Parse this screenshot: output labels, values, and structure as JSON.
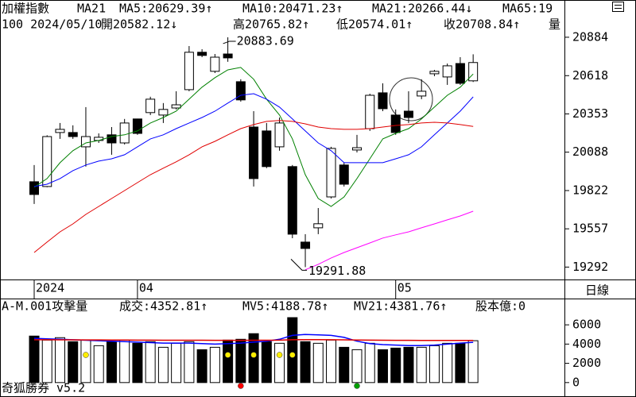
{
  "chart_data": [
    {
      "type": "candlestick",
      "title": "加權指數",
      "subtitle": "MA21",
      "info": [
        "100 2024/05/10",
        "開20582.12↓",
        "高20765.82↑",
        "低20574.01↑",
        "收20708.84↑",
        "量"
      ],
      "categories": [
        "2024",
        null,
        null,
        null,
        null,
        null,
        null,
        null,
        "04",
        null,
        null,
        null,
        null,
        null,
        null,
        null,
        null,
        null,
        null,
        null,
        null,
        null,
        null,
        null,
        null,
        null,
        null,
        null,
        "05",
        null,
        null,
        null,
        null,
        null,
        null
      ],
      "open": [
        19883,
        19850,
        20224,
        20224,
        20125,
        20169,
        20208,
        20152,
        20318,
        20362,
        20345,
        20394,
        20521,
        20780,
        20648,
        20768,
        20576,
        20262,
        20235,
        20125,
        19988,
        19465,
        19564,
        19778,
        19999,
        20103,
        20251,
        20499,
        20345,
        20372,
        20477,
        20631,
        20609,
        20702,
        20582.12
      ],
      "high": [
        19999,
        20205,
        20290,
        20274,
        20400,
        20218,
        20262,
        20318,
        20320,
        20472,
        20428,
        20510,
        20823,
        20801,
        20768,
        20883.69,
        20593,
        20372,
        20290,
        20328,
        19999,
        19520,
        19701,
        20125,
        20015,
        20208,
        20493,
        20565,
        20384,
        20510,
        20593,
        20658,
        20702,
        20746,
        20765.82
      ],
      "low": [
        19729,
        19845,
        20180,
        20180,
        19988,
        20152,
        20070,
        20141,
        20208,
        20345,
        20290,
        20384,
        20510,
        20746,
        20636,
        20714,
        20438,
        19850,
        19977,
        20098,
        19492,
        19291.88,
        19520,
        19767,
        19850,
        20086,
        20235,
        20372,
        20208,
        20290,
        20455,
        20614,
        20554,
        20554,
        20574.01
      ],
      "close": [
        19795,
        20196,
        20246,
        20196,
        20196,
        20191,
        20152,
        20290,
        20218,
        20455,
        20384,
        20416,
        20780,
        20758,
        20746,
        20741,
        20450,
        19905,
        19988,
        20290,
        19520,
        19421,
        19592,
        20114,
        19866,
        20119,
        20482,
        20389,
        20224,
        20328,
        20510,
        20648,
        20686,
        20565,
        20708.84
      ],
      "series": [
        {
          "name": "MA5:20629.39↑",
          "color": "#008000",
          "values": [
            19845,
            19905,
            20015,
            20098,
            20152,
            20169,
            20196,
            20208,
            20235,
            20290,
            20328,
            20372,
            20455,
            20538,
            20604,
            20658,
            20675,
            20593,
            20455,
            20345,
            20180,
            19932,
            19767,
            19712,
            19778,
            19905,
            20042,
            20180,
            20218,
            20251,
            20318,
            20400,
            20482,
            20538,
            20629.39
          ]
        },
        {
          "name": "MA10:20471.23↑",
          "color": "#0000ff",
          "values": [
            19850,
            19866,
            19905,
            19960,
            19999,
            20026,
            20042,
            20070,
            20125,
            20180,
            20208,
            20251,
            20290,
            20328,
            20372,
            20428,
            20482,
            20493,
            20455,
            20400,
            20318,
            20235,
            20152,
            20098,
            20015,
            20015,
            20015,
            20015,
            20042,
            20070,
            20125,
            20208,
            20290,
            20372,
            20471.23
          ]
        },
        {
          "name": "MA21:20266.44↓",
          "color": "#e00000",
          "values": [
            19393,
            19465,
            19536,
            19591,
            19657,
            19712,
            19767,
            19822,
            19877,
            19932,
            19977,
            20021,
            20070,
            20125,
            20163,
            20208,
            20251,
            20279,
            20301,
            20307,
            20301,
            20284,
            20262,
            20251,
            20246,
            20246,
            20251,
            20262,
            20273,
            20279,
            20290,
            20295,
            20290,
            20279,
            20266.44
          ]
        },
        {
          "name": "MA65:19",
          "color": "#ff00ff",
          "values": [
            null,
            null,
            null,
            null,
            null,
            null,
            null,
            null,
            null,
            null,
            null,
            null,
            null,
            null,
            null,
            null,
            null,
            null,
            null,
            null,
            null,
            19273,
            19311,
            19355,
            19393,
            19426,
            19459,
            19493,
            19515,
            19536,
            19564,
            19591,
            19619,
            19646,
            19679
          ]
        }
      ],
      "extreme_labels": true,
      "ylim": [
        19206,
        21032
      ],
      "yticks": [
        20884,
        20618,
        20353,
        20088,
        19822,
        19557,
        19292
      ]
    },
    {
      "type": "bar",
      "title": "A-M.001攻擊量",
      "legend_label": "成交:4352.81↑",
      "legend_color": "#008000",
      "extra_label": "股本億:0",
      "extra_color": "#ff00ff",
      "values": [
        4833,
        4417,
        4667,
        4250,
        4417,
        3833,
        4250,
        4417,
        4083,
        4250,
        3667,
        4083,
        4250,
        3417,
        3667,
        4417,
        4500,
        5083,
        4250,
        4083,
        6750,
        4250,
        4083,
        4417,
        3667,
        3417,
        4083,
        3417,
        3583,
        3667,
        3667,
        3833,
        4083,
        4083,
        4352.81
      ],
      "series": [
        {
          "name": "MV5:4188.78↑",
          "color": "#0000ff",
          "values": [
            4600,
            4550,
            4500,
            4450,
            4400,
            4350,
            4300,
            4250,
            4200,
            4150,
            4100,
            4100,
            4100,
            4050,
            4000,
            4050,
            4100,
            4200,
            4300,
            4500,
            4900,
            5000,
            4950,
            4900,
            4700,
            4300,
            4050,
            3950,
            3900,
            3850,
            3850,
            3900,
            4000,
            4100,
            4188.78
          ]
        },
        {
          "name": "MV21:4381.76↑",
          "color": "#e00000",
          "values": [
            4450,
            4450,
            4440,
            4440,
            4430,
            4430,
            4420,
            4420,
            4410,
            4410,
            4400,
            4400,
            4400,
            4400,
            4390,
            4390,
            4390,
            4400,
            4400,
            4410,
            4450,
            4460,
            4460,
            4450,
            4440,
            4420,
            4410,
            4400,
            4390,
            4390,
            4380,
            4380,
            4380,
            4380,
            4381.76
          ]
        }
      ],
      "signals": [
        {
          "color": "#ffee00",
          "indices": [
            4,
            15,
            17,
            19,
            20
          ]
        },
        {
          "color": "#ff0000",
          "indices": [
            16
          ]
        },
        {
          "color": "#00a000",
          "indices": [
            25
          ]
        }
      ],
      "ylim": [
        -1500,
        7000
      ],
      "yticks": [
        6000,
        4000,
        2000,
        0
      ]
    }
  ],
  "period": "日線",
  "footer": "奇狐勝券 v5.2"
}
